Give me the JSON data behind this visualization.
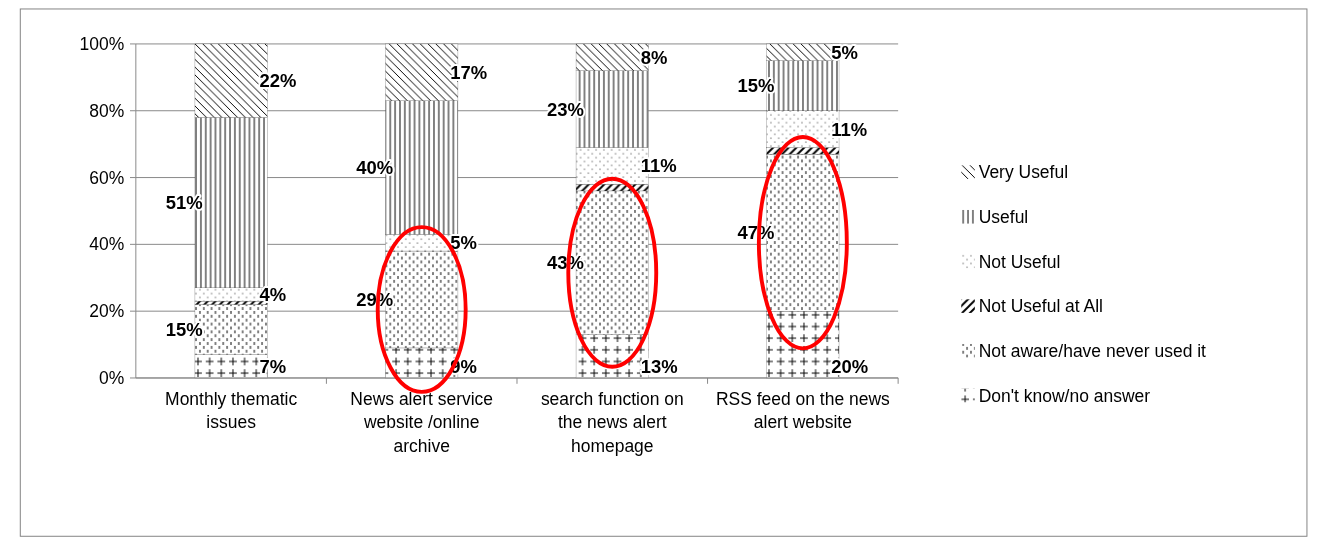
{
  "chart_data": {
    "type": "bar",
    "stacked": true,
    "categories": [
      "Monthly thematic issues",
      "News alert service website /online archive",
      "search function on the news alert homepage",
      "RSS feed on the news alert website"
    ],
    "series": [
      {
        "name": "Don't know/no answer",
        "color": "#000000",
        "values": [
          7,
          9,
          13,
          20
        ],
        "value_labels": [
          "7%",
          "9%",
          "13%",
          "20%"
        ]
      },
      {
        "name": "Not aware/have never used it",
        "color": "#000000",
        "values": [
          15,
          29,
          43,
          47
        ],
        "value_labels": [
          "15%",
          "29%",
          "43%",
          "47%"
        ]
      },
      {
        "name": "Not Useful at All",
        "color": "#000000",
        "values": [
          1,
          0,
          2,
          2
        ],
        "value_labels": [
          null,
          null,
          null,
          null
        ]
      },
      {
        "name": "Not Useful",
        "color": "#000000",
        "values": [
          4,
          5,
          11,
          11
        ],
        "value_labels": [
          "4%",
          "5%",
          "11%",
          "11%"
        ]
      },
      {
        "name": "Useful",
        "color": "#000000",
        "values": [
          51,
          40,
          23,
          15
        ],
        "value_labels": [
          "51%",
          "40%",
          "23%",
          "15%"
        ]
      },
      {
        "name": "Very Useful",
        "color": "#000000",
        "values": [
          22,
          17,
          8,
          5
        ],
        "value_labels": [
          "22%",
          "17%",
          "8%",
          "5%"
        ]
      }
    ],
    "ylim": [
      0,
      100
    ],
    "yticks": [
      {
        "value": 0,
        "label": "0%"
      },
      {
        "value": 20,
        "label": "20%"
      },
      {
        "value": 40,
        "label": "40%"
      },
      {
        "value": 60,
        "label": "60%"
      },
      {
        "value": 80,
        "label": "80%"
      },
      {
        "value": 100,
        "label": "100%"
      }
    ],
    "grid": "y",
    "legend": "right"
  }
}
